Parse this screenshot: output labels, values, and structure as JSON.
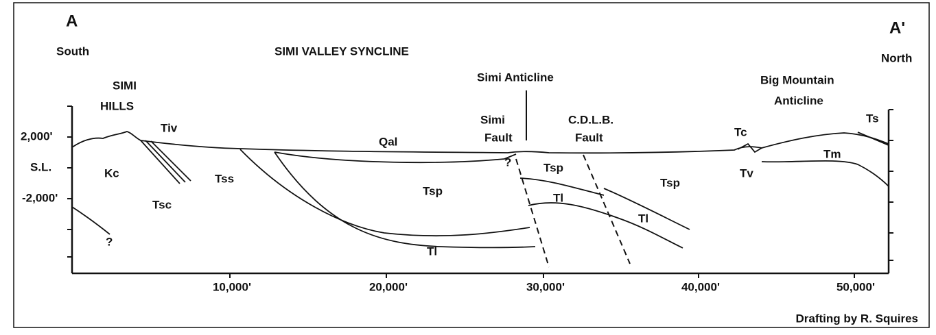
{
  "ends": {
    "left": {
      "letter": "A",
      "direction": "South"
    },
    "right": {
      "letter": "A'",
      "direction": "North"
    }
  },
  "title": "SIMI VALLEY SYNCLINE",
  "places": {
    "simi_hills": [
      "SIMI",
      "HILLS"
    ],
    "simi_anticline": "Simi Anticline",
    "simi_fault": [
      "Simi",
      "Fault"
    ],
    "cdlb_fault": [
      "C.D.L.B.",
      "Fault"
    ],
    "big_mountain": [
      "Big Mountain",
      "Anticline"
    ]
  },
  "units": [
    "Tiv",
    "Kc",
    "Tsc",
    "Tss",
    "Qal",
    "Tsp",
    "Tsp",
    "Tsp",
    "Tl",
    "Tl",
    "Tl",
    "Tc",
    "Tv",
    "Tm",
    "Ts",
    "?",
    "?"
  ],
  "axis": {
    "y_labels": [
      "2,000'",
      "S.L.",
      "-2,000'"
    ],
    "x_labels": [
      "10,000'",
      "20,000'",
      "30,000'",
      "40,000'",
      "50,000'"
    ]
  },
  "credit": "Drafting by R. Squires"
}
